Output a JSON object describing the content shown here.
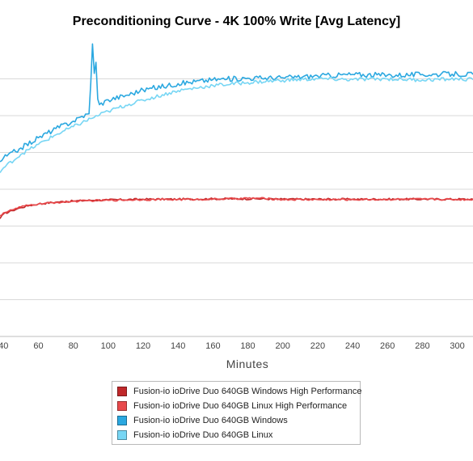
{
  "chart_data": {
    "type": "line",
    "title": "Preconditioning Curve - 4K 100% Write [Avg Latency]",
    "xlabel": "Minutes",
    "ylabel": "",
    "x_ticks": [
      40,
      60,
      80,
      100,
      120,
      140,
      160,
      180,
      200,
      220,
      240,
      260,
      280,
      300
    ],
    "xlim": [
      38,
      309
    ],
    "ylim": [
      0,
      8
    ],
    "y_grid_values": [
      1,
      2,
      3,
      4,
      5,
      6,
      7
    ],
    "grid": true,
    "legend_position": "bottom",
    "series": [
      {
        "name": "Fusion-io ioDrive Duo 640GB Windows High Performance",
        "color": "#c0282a",
        "x": [
          38,
          40,
          45,
          50,
          55,
          60,
          70,
          80,
          90,
          100,
          120,
          140,
          160,
          185,
          200,
          240,
          280,
          309
        ],
        "y": [
          3.2,
          3.33,
          3.42,
          3.5,
          3.56,
          3.6,
          3.65,
          3.68,
          3.7,
          3.71,
          3.73,
          3.73,
          3.74,
          3.74,
          3.73,
          3.73,
          3.73,
          3.73
        ]
      },
      {
        "name": "Fusion-io ioDrive Duo 640GB Linux High Performance",
        "color": "#e8494b",
        "x": [
          38,
          40,
          45,
          50,
          55,
          60,
          70,
          80,
          90,
          100,
          120,
          140,
          160,
          185,
          200,
          240,
          280,
          309
        ],
        "y": [
          3.28,
          3.36,
          3.44,
          3.52,
          3.57,
          3.6,
          3.64,
          3.67,
          3.69,
          3.7,
          3.72,
          3.72,
          3.73,
          3.76,
          3.72,
          3.72,
          3.73,
          3.72
        ]
      },
      {
        "name": "Fusion-io ioDrive Duo 640GB Windows",
        "color": "#2ba8e0",
        "x": [
          38,
          40,
          50,
          60,
          70,
          80,
          85,
          89,
          90,
          91,
          92,
          93,
          94,
          95,
          100,
          110,
          120,
          140,
          160,
          180,
          200,
          220,
          240,
          260,
          280,
          300,
          309
        ],
        "y": [
          4.75,
          4.85,
          5.12,
          5.4,
          5.65,
          5.85,
          5.98,
          6.05,
          6.9,
          7.95,
          7.15,
          7.45,
          6.45,
          6.3,
          6.43,
          6.55,
          6.7,
          6.87,
          6.98,
          7.02,
          7.03,
          7.08,
          7.12,
          7.1,
          7.12,
          7.13,
          7.12
        ]
      },
      {
        "name": "Fusion-io ioDrive Duo 640GB Linux",
        "color": "#77d6f4",
        "x": [
          38,
          40,
          50,
          60,
          70,
          80,
          90,
          100,
          110,
          120,
          140,
          160,
          180,
          200,
          220,
          240,
          260,
          280,
          300,
          309
        ],
        "y": [
          4.45,
          4.58,
          4.95,
          5.22,
          5.48,
          5.7,
          5.92,
          6.12,
          6.28,
          6.42,
          6.68,
          6.82,
          6.9,
          6.96,
          7.0,
          6.98,
          7.0,
          6.97,
          7.0,
          6.98
        ]
      }
    ]
  }
}
